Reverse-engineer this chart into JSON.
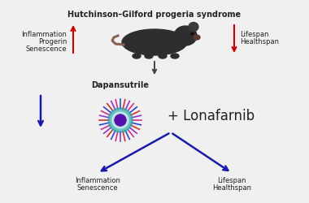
{
  "title": "Hutchinson–Gilford progeria syndrome",
  "title_fontsize": 7.0,
  "title_fontweight": "bold",
  "bg_color": "#f0f0f0",
  "left_label_lines": [
    "Inflammation",
    "Progerin",
    "Senescence"
  ],
  "right_label_lines": [
    "Lifespan",
    "Healthspan"
  ],
  "dapansutrile_label": "Dapansutrile",
  "lonafarnib_label": "+ Lonafarnib",
  "bottom_left_lines": [
    "Inflammation",
    "Senescence"
  ],
  "bottom_right_lines": [
    "Lifespan",
    "Healthspan"
  ],
  "arrow_color_red": "#cc0000",
  "arrow_color_gray": "#444444",
  "arrow_color_blue": "#1a1aaa",
  "text_color": "#222222",
  "label_fontsize": 6.0,
  "dap_fontsize": 7.0,
  "lona_fontsize": 12.0
}
